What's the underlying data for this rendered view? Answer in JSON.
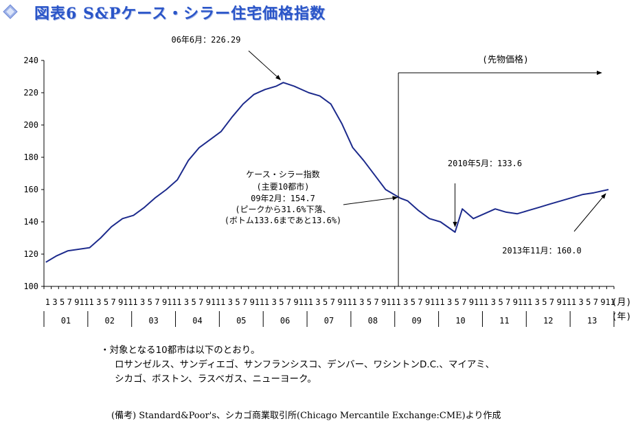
{
  "title": "図表6 S&Pケース・シラー住宅価格指数",
  "chart_data": {
    "type": "line",
    "title": "図表6 S&Pケース・シラー住宅価格指数",
    "ylim": [
      100,
      240
    ],
    "yticks": [
      "100",
      "120",
      "140",
      "160",
      "180",
      "200",
      "220",
      "240"
    ],
    "month_tick_labels": [
      "1",
      "3",
      "5",
      "7",
      "9",
      "11"
    ],
    "year_labels": [
      "01",
      "02",
      "03",
      "04",
      "05",
      "06",
      "07",
      "08",
      "09",
      "10",
      "11",
      "12",
      "13"
    ],
    "x_unit_month": "(月)",
    "x_unit_year": "(年)",
    "grid": false,
    "series_actual": {
      "name": "ケース・シラー指数(主要10都市)",
      "x": [
        "2001-01",
        "2001-04",
        "2001-07",
        "2002-01",
        "2002-04",
        "2002-07",
        "2002-10",
        "2003-01",
        "2003-04",
        "2003-07",
        "2003-10",
        "2004-01",
        "2004-04",
        "2004-07",
        "2004-10",
        "2005-01",
        "2005-04",
        "2005-07",
        "2005-10",
        "2006-01",
        "2006-04",
        "2006-06",
        "2006-09",
        "2007-01",
        "2007-04",
        "2007-07",
        "2007-10",
        "2008-01",
        "2008-04",
        "2008-07",
        "2008-10",
        "2009-02"
      ],
      "y": [
        115,
        119,
        122,
        124,
        130,
        137,
        142,
        144,
        149,
        155,
        160,
        166,
        178,
        186,
        191,
        196,
        205,
        213,
        219,
        222,
        224,
        226.29,
        224,
        220,
        218,
        213,
        201,
        186,
        178,
        169,
        160,
        154.7
      ]
    },
    "series_futures": {
      "name": "先物価格",
      "x": [
        "2009-02",
        "2009-04",
        "2009-07",
        "2009-10",
        "2010-01",
        "2010-05",
        "2010-07",
        "2010-10",
        "2011-01",
        "2011-04",
        "2011-07",
        "2011-10",
        "2012-01",
        "2012-04",
        "2012-07",
        "2012-10",
        "2013-01",
        "2013-04",
        "2013-07",
        "2013-11"
      ],
      "y": [
        154.7,
        153,
        147,
        142,
        140,
        133.6,
        148,
        142,
        145,
        148,
        146,
        145,
        147,
        149,
        151,
        153,
        155,
        157,
        158,
        160.0
      ]
    },
    "futures_region_label": "(先物価格)",
    "annotations": {
      "peak": "06年6月：226.29",
      "feb09_lines": [
        "ケース・シラー指数",
        "(主要10都市)",
        "09年2月：154.7",
        "(ピークから31.6%下落、",
        "(ボトム133.6まであと13.6%)"
      ],
      "may10": "2010年5月：133.6",
      "nov13": "2013年11月：160.0"
    }
  },
  "notes": {
    "line1": "・対象となる10都市は以下のとおり。",
    "line2": "ロサンゼルス、サンディエゴ、サンフランシスコ、デンバー、ワシントンD.C.、マイアミ、",
    "line3": "シカゴ、ボストン、ラスベガス、ニューヨーク。"
  },
  "source": "(備考) Standard&Poor's、シカゴ商業取引所(Chicago Mercantile Exchange:CME)より作成"
}
